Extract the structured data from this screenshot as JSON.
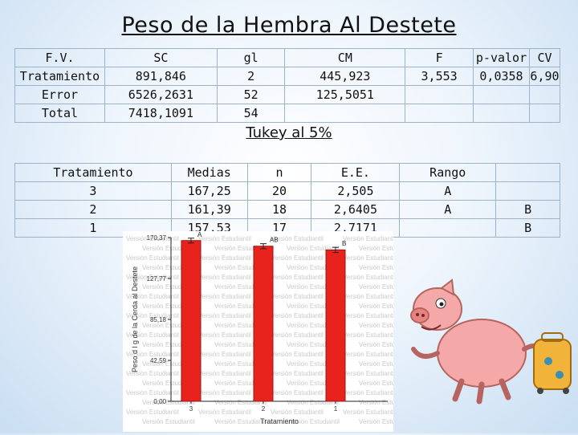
{
  "title": "Peso de la Hembra Al Destete",
  "anova": {
    "headers": [
      "F.V.",
      "SC",
      "gl",
      "CM",
      "F",
      "p-valor",
      "CV"
    ],
    "rows": [
      [
        "Tratamiento",
        "891,846",
        "2",
        "445,923",
        "3,553",
        "0,0358",
        "6,90"
      ],
      [
        "Error",
        "6526,2631",
        "52",
        "125,5051",
        "",
        "",
        ""
      ],
      [
        "Total",
        "7418,1091",
        "54",
        "",
        "",
        "",
        ""
      ]
    ]
  },
  "tukey_title": "Tukey al 5%",
  "tukey": {
    "headers": [
      "Tratamiento",
      "Medias",
      "n",
      "E.E.",
      "Rango",
      ""
    ],
    "rows": [
      [
        "3",
        "167,25",
        "20",
        "2,505",
        "A",
        ""
      ],
      [
        "2",
        "161,39",
        "18",
        "2,6405",
        "A",
        "B"
      ],
      [
        "1",
        "157,53",
        "17",
        "2,7171",
        "",
        "B"
      ]
    ]
  },
  "chart_data": {
    "type": "bar",
    "categories": [
      "3",
      "2",
      "1"
    ],
    "values": [
      167.25,
      161.39,
      157.53
    ],
    "errors": [
      2.505,
      2.6405,
      2.7171
    ],
    "letters": [
      "A",
      "AB",
      "B"
    ],
    "title": "",
    "xlabel": "Tratamiento",
    "ylabel": "Peso d l g de la Cerda al Destete",
    "ytick_labels": [
      "0,00",
      "42,59",
      "85,18",
      "127,77",
      "170,37"
    ],
    "ytick_values": [
      0,
      42.59,
      85.18,
      127.77,
      170.37
    ],
    "ylim": [
      0,
      170.37
    ],
    "bar_color": "#e8231d",
    "watermark": "Versión Estudiantil",
    "grid": false
  },
  "illustration": {
    "name": "pig-with-luggage",
    "colors": {
      "pig": "#f4a9a8",
      "bag": "#f2b33b"
    }
  }
}
